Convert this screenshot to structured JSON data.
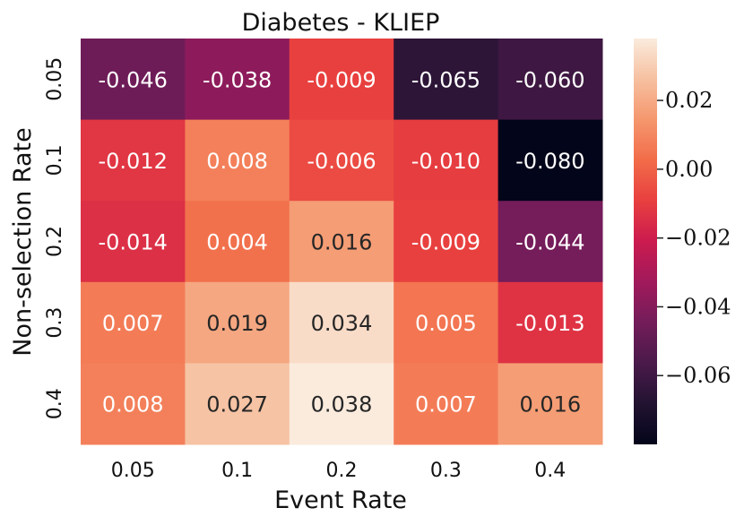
{
  "chart_data": {
    "type": "heatmap",
    "title": "Diabetes - KLIEP",
    "xlabel": "Event Rate",
    "ylabel": "Non-selection Rate",
    "x_categories": [
      "0.05",
      "0.1",
      "0.2",
      "0.3",
      "0.4"
    ],
    "y_categories": [
      "0.05",
      "0.1",
      "0.2",
      "0.3",
      "0.4"
    ],
    "values": [
      [
        -0.046,
        -0.038,
        -0.009,
        -0.065,
        -0.06
      ],
      [
        -0.012,
        0.008,
        -0.006,
        -0.01,
        -0.08
      ],
      [
        -0.014,
        0.004,
        0.016,
        -0.009,
        -0.044
      ],
      [
        0.007,
        0.019,
        0.034,
        0.005,
        -0.013
      ],
      [
        0.008,
        0.027,
        0.038,
        0.007,
        0.016
      ]
    ],
    "value_labels": [
      [
        "-0.046",
        "-0.038",
        "-0.009",
        "-0.065",
        "-0.060"
      ],
      [
        "-0.012",
        "0.008",
        "-0.006",
        "-0.010",
        "-0.080"
      ],
      [
        "-0.014",
        "0.004",
        "0.016",
        "-0.009",
        "-0.044"
      ],
      [
        "0.007",
        "0.019",
        "0.034",
        "0.005",
        "-0.013"
      ],
      [
        "0.008",
        "0.027",
        "0.038",
        "0.007",
        "0.016"
      ]
    ],
    "vmin": -0.08,
    "vmax": 0.038,
    "colormap": "rocket",
    "colorbar_ticks": [
      0.02,
      0.0,
      -0.02,
      -0.04,
      -0.06
    ],
    "colorbar_tick_labels": [
      "0.02",
      "0.00",
      "−0.02",
      "−0.04",
      "−0.06"
    ]
  }
}
